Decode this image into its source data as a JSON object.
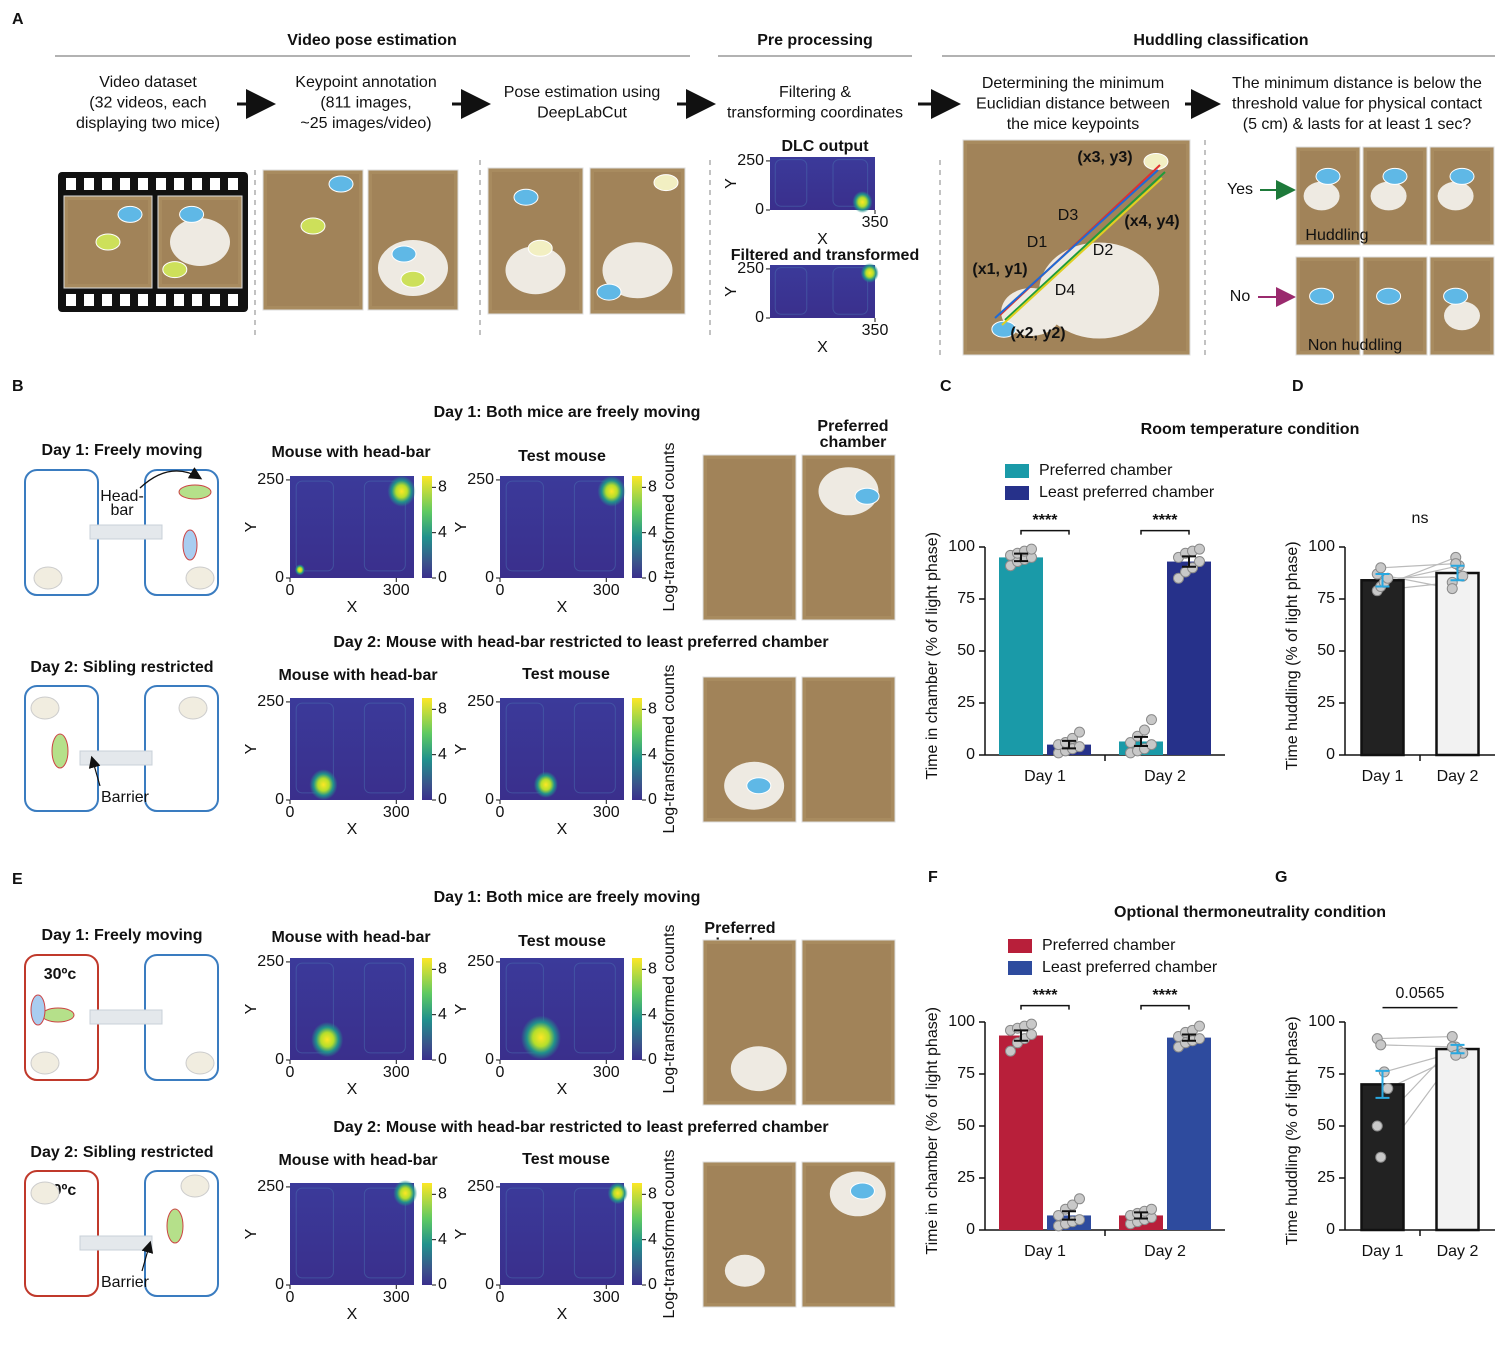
{
  "panel_labels": [
    "A",
    "B",
    "C",
    "D",
    "E",
    "F",
    "G"
  ],
  "panel_a": {
    "sections": [
      "Video pose estimation",
      "Pre processing",
      "Huddling classification"
    ],
    "steps": [
      [
        "Video dataset",
        "(32 videos, each",
        "displaying two mice)"
      ],
      [
        "Keypoint annotation",
        "(811 images,",
        "~25 images/video)"
      ],
      [
        "Pose estimation using",
        "DeepLabCut"
      ],
      [
        "Filtering &",
        "transforming coordinates"
      ],
      [
        "Determining the minimum",
        "Euclidian distance between",
        "the mice keypoints"
      ],
      [
        "The minimum distance is below the",
        "threshold value for physical contact",
        "(5 cm) & lasts for at least 1 sec?"
      ]
    ],
    "heatmap_titles": [
      "DLC output",
      "Filtered and transformed"
    ],
    "heatmap_axes": {
      "xlim": [
        0,
        350
      ],
      "ylim": [
        0,
        270
      ],
      "xticks": [
        350
      ],
      "yticks": [
        0,
        250
      ],
      "x_label": "X",
      "y_label": "Y"
    },
    "keypoints": [
      "(x1, y1)",
      "(x2, y2)",
      "(x3, y3)",
      "(x4, y4)"
    ],
    "distances": [
      "D1",
      "D2",
      "D3",
      "D4"
    ],
    "decisions": [
      "Yes",
      "No"
    ],
    "outcomes": [
      "Huddling",
      "Non huddling"
    ]
  },
  "behavior": {
    "day_titles": [
      "Day 1: Both mice are freely moving",
      "Day 2: Mouse with head-bar restricted to least preferred chamber"
    ],
    "schematic_titles": [
      "Day 1: Freely moving",
      "Day 2: Sibling restricted"
    ],
    "head_bar": [
      "Head-",
      "bar"
    ],
    "barrier": "Barrier",
    "temperature": "30ºc",
    "heatmap_titles": [
      "Mouse with head-bar",
      "Test mouse"
    ],
    "preferred": [
      "Preferred",
      "chamber"
    ],
    "heatmap_axes": {
      "xlim": [
        0,
        350
      ],
      "ylim": [
        0,
        260
      ],
      "xticks": [
        0,
        300
      ],
      "yticks": [
        0,
        250
      ],
      "clim": [
        0,
        9
      ],
      "cticks": [
        0,
        4,
        8
      ],
      "x_label": "X",
      "y_label": "Y",
      "colorbar_label": "Log-transformed counts"
    }
  },
  "chart_data": [
    {
      "type": "bar",
      "title": "Room temperature condition",
      "title_color": "#2f4ea0",
      "categories": [
        "Day 1",
        "Day 2"
      ],
      "ylabel": "Time in chamber (% of light phase)",
      "ylim": [
        0,
        105
      ],
      "yticks": [
        0,
        25,
        50,
        75,
        100
      ],
      "error_color": "#111111",
      "significance": [
        "****",
        "****"
      ],
      "series": [
        {
          "name": "Preferred chamber",
          "color": "#1a9aa8",
          "values": [
            95,
            6.5
          ],
          "errors": [
            1.8,
            2.2
          ],
          "points": [
            [
              91,
              93,
              94,
              95,
              96,
              97,
              98,
              99
            ],
            [
              1,
              2,
              3,
              5,
              6,
              9,
              12,
              17
            ]
          ]
        },
        {
          "name": "Least preferred chamber",
          "color": "#26318a",
          "values": [
            5,
            93
          ],
          "errors": [
            1.8,
            2.5
          ],
          "points": [
            [
              1,
              2,
              3,
              4,
              5,
              6,
              8,
              11
            ],
            [
              85,
              88,
              90,
              93,
              95,
              97,
              98,
              99
            ]
          ]
        }
      ]
    },
    {
      "type": "paired_bar",
      "categories": [
        "Day 1",
        "Day 2"
      ],
      "ylabel": "Time huddling (% of light phase)",
      "ylim": [
        0,
        105
      ],
      "yticks": [
        0,
        25,
        50,
        75,
        100
      ],
      "values": [
        84,
        87.5
      ],
      "errors": [
        3,
        3.5
      ],
      "colors": [
        "#222222",
        "#f2f2f2"
      ],
      "error_color": "#29a8e0",
      "annotation": "ns",
      "bracket": false,
      "points": [
        [
          79,
          81,
          83,
          85,
          87,
          90
        ],
        [
          83,
          95,
          91,
          86,
          80,
          92
        ]
      ]
    },
    {
      "type": "bar",
      "title": "Optional thermoneutrality condition",
      "title_color": "#c8262e",
      "categories": [
        "Day 1",
        "Day 2"
      ],
      "ylabel": "Time in chamber (% of light phase)",
      "ylim": [
        0,
        105
      ],
      "yticks": [
        0,
        25,
        50,
        75,
        100
      ],
      "error_color": "#111111",
      "significance": [
        "****",
        "****"
      ],
      "series": [
        {
          "name": "Preferred chamber",
          "color": "#b81f3a",
          "values": [
            93.5,
            7
          ],
          "errors": [
            2.5,
            1.5
          ],
          "points": [
            [
              86,
              90,
              92,
              94,
              96,
              97,
              98,
              99
            ],
            [
              3,
              4,
              5,
              6,
              7,
              8,
              9,
              10
            ]
          ]
        },
        {
          "name": "Least preferred chamber",
          "color": "#2e4b9e",
          "values": [
            7,
            92.5
          ],
          "errors": [
            2,
            1.5
          ],
          "points": [
            [
              2,
              3,
              4,
              5,
              7,
              10,
              12,
              15
            ],
            [
              88,
              90,
              91,
              92,
              93,
              95,
              96,
              98
            ]
          ]
        }
      ]
    },
    {
      "type": "paired_bar",
      "categories": [
        "Day 1",
        "Day 2"
      ],
      "ylabel": "Time huddling (% of light phase)",
      "ylim": [
        0,
        105
      ],
      "yticks": [
        0,
        25,
        50,
        75,
        100
      ],
      "values": [
        70,
        87
      ],
      "errors": [
        6.5,
        2
      ],
      "colors": [
        "#222222",
        "#f2f2f2"
      ],
      "error_color": "#29a8e0",
      "annotation": "0.0565",
      "bracket": true,
      "points": [
        [
          92,
          89,
          76,
          68,
          50,
          35
        ],
        [
          93,
          88,
          86,
          85,
          88,
          84
        ]
      ]
    }
  ]
}
